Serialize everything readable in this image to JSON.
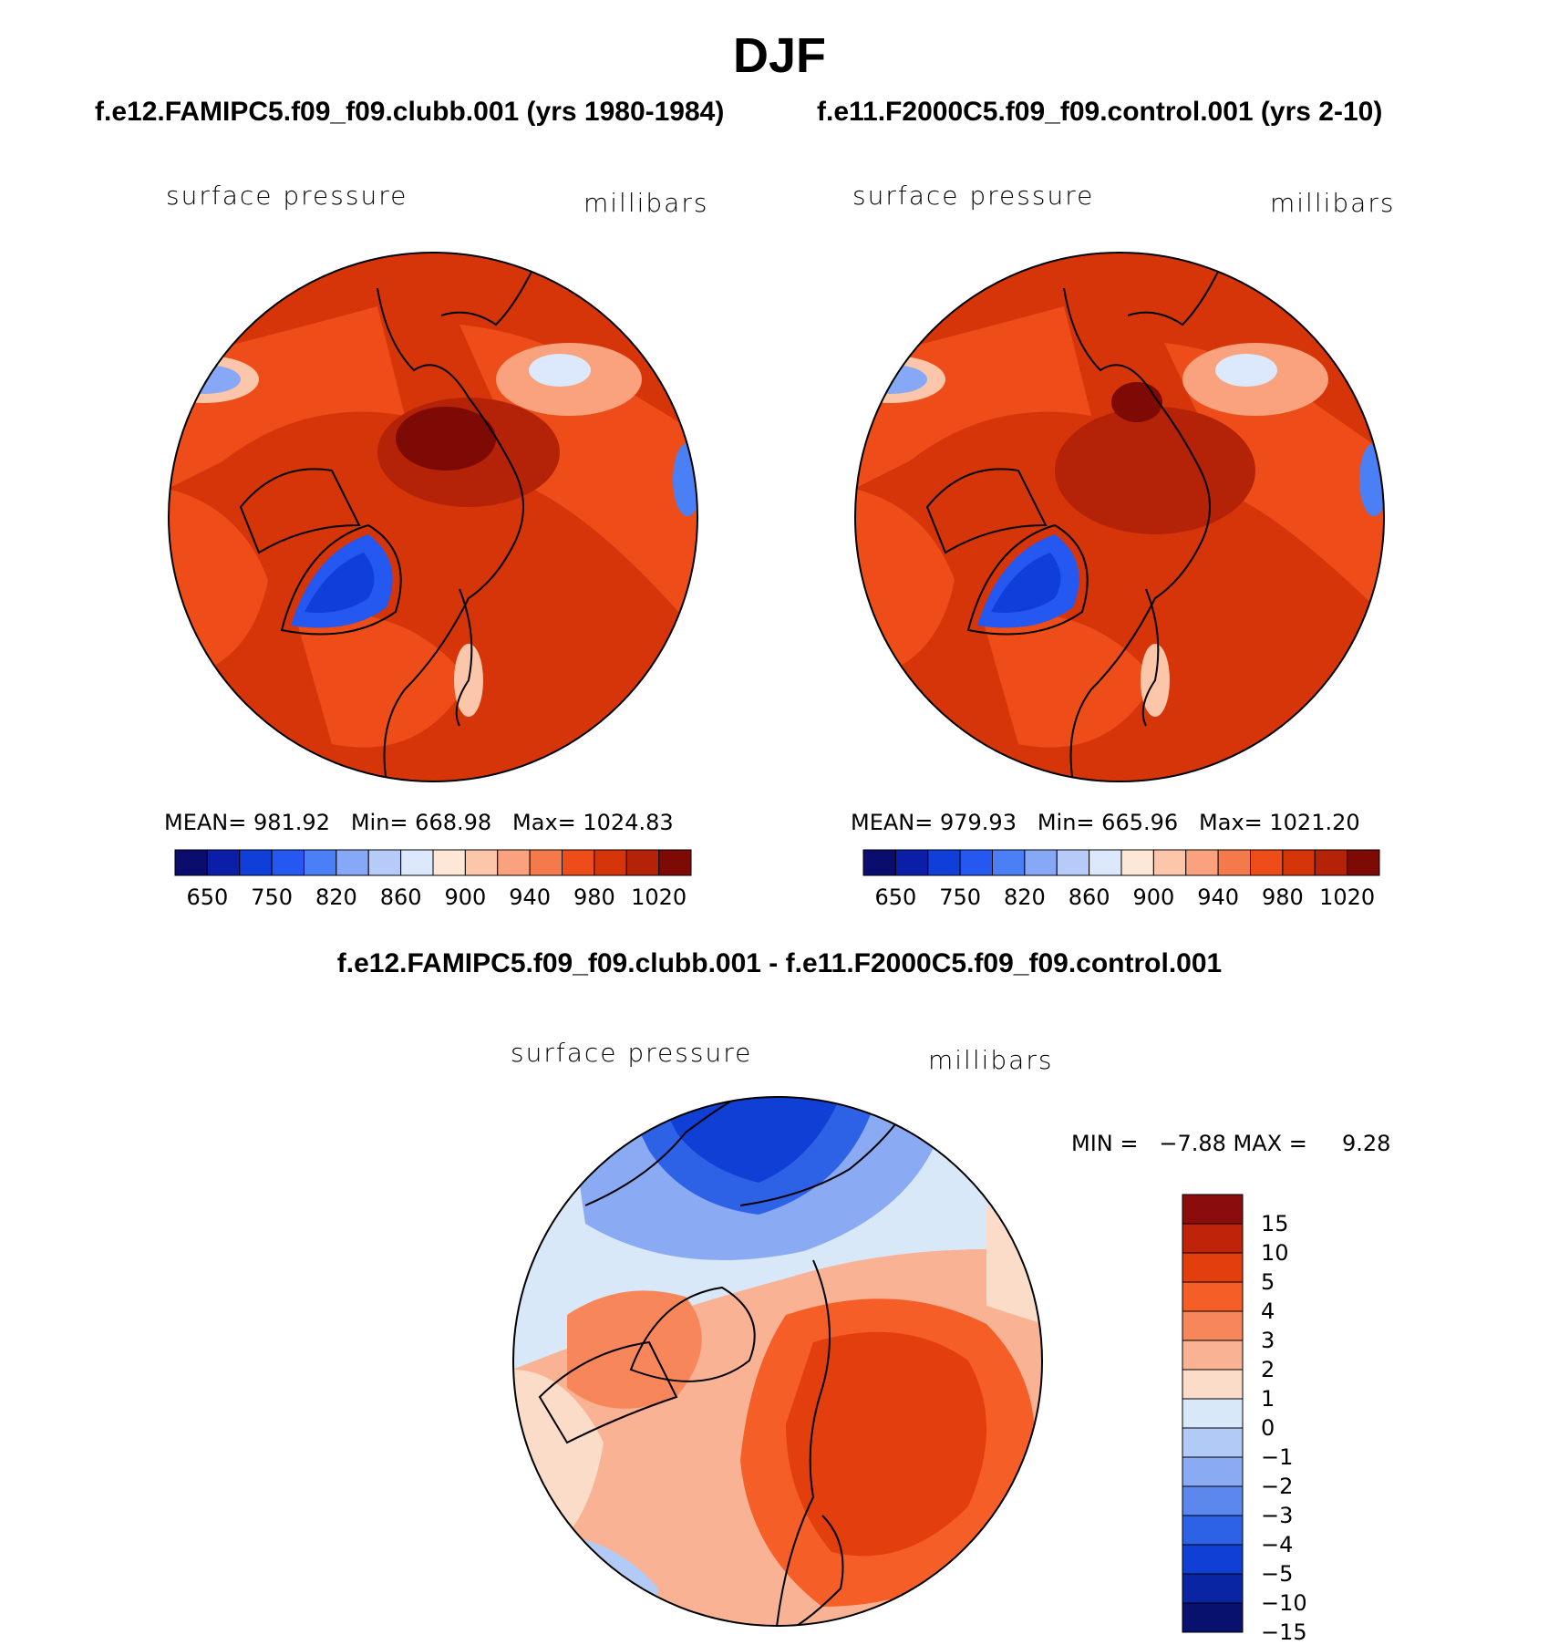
{
  "main_title": "DJF",
  "panels": {
    "left": {
      "case": "f.e12.FAMIPC5.f09_f09.clubb.001 (yrs 1980-1984)",
      "variable": "surface pressure",
      "units": "millibars",
      "stats": "MEAN= 981.92   Min= 668.98   Max= 1024.83"
    },
    "right": {
      "case": "f.e11.F2000C5.f09_f09.control.001 (yrs 2-10)",
      "variable": "surface pressure",
      "units": "millibars",
      "stats": "MEAN= 979.93   Min= 665.96   Max= 1021.20"
    },
    "diff": {
      "case": "f.e12.FAMIPC5.f09_f09.clubb.001 - f.e11.F2000C5.f09_f09.control.001",
      "variable": "surface pressure",
      "units": "millibars",
      "stats": "MIN =   −7.88 MAX =     9.28"
    }
  },
  "colorbar_top": {
    "colors": [
      "#0a0c6e",
      "#0b1ea8",
      "#0f3ed8",
      "#2458f0",
      "#4a7ff5",
      "#86a8f7",
      "#b7cbf8",
      "#dce8fb",
      "#fde7d7",
      "#fbc6aa",
      "#f9a27d",
      "#f57a4b",
      "#ee4d1a",
      "#d63509",
      "#b42207",
      "#7e0a05"
    ],
    "ticks": [
      "650",
      "750",
      "820",
      "860",
      "900",
      "940",
      "980",
      "1020"
    ]
  },
  "colorbar_diff": {
    "colors": [
      "#8b0c0c",
      "#bf230a",
      "#e33e0e",
      "#f55e26",
      "#f7875a",
      "#f9b294",
      "#fbdcc8",
      "#d8e8f8",
      "#b2cbf6",
      "#8aabf3",
      "#5c88ee",
      "#2e62e6",
      "#0f3fd4",
      "#0a25a4",
      "#08116e"
    ],
    "ticks": [
      "15",
      "10",
      "5",
      "4",
      "3",
      "2",
      "1",
      "0",
      "−1",
      "−2",
      "−3",
      "−4",
      "−5",
      "−10",
      "−15"
    ]
  }
}
